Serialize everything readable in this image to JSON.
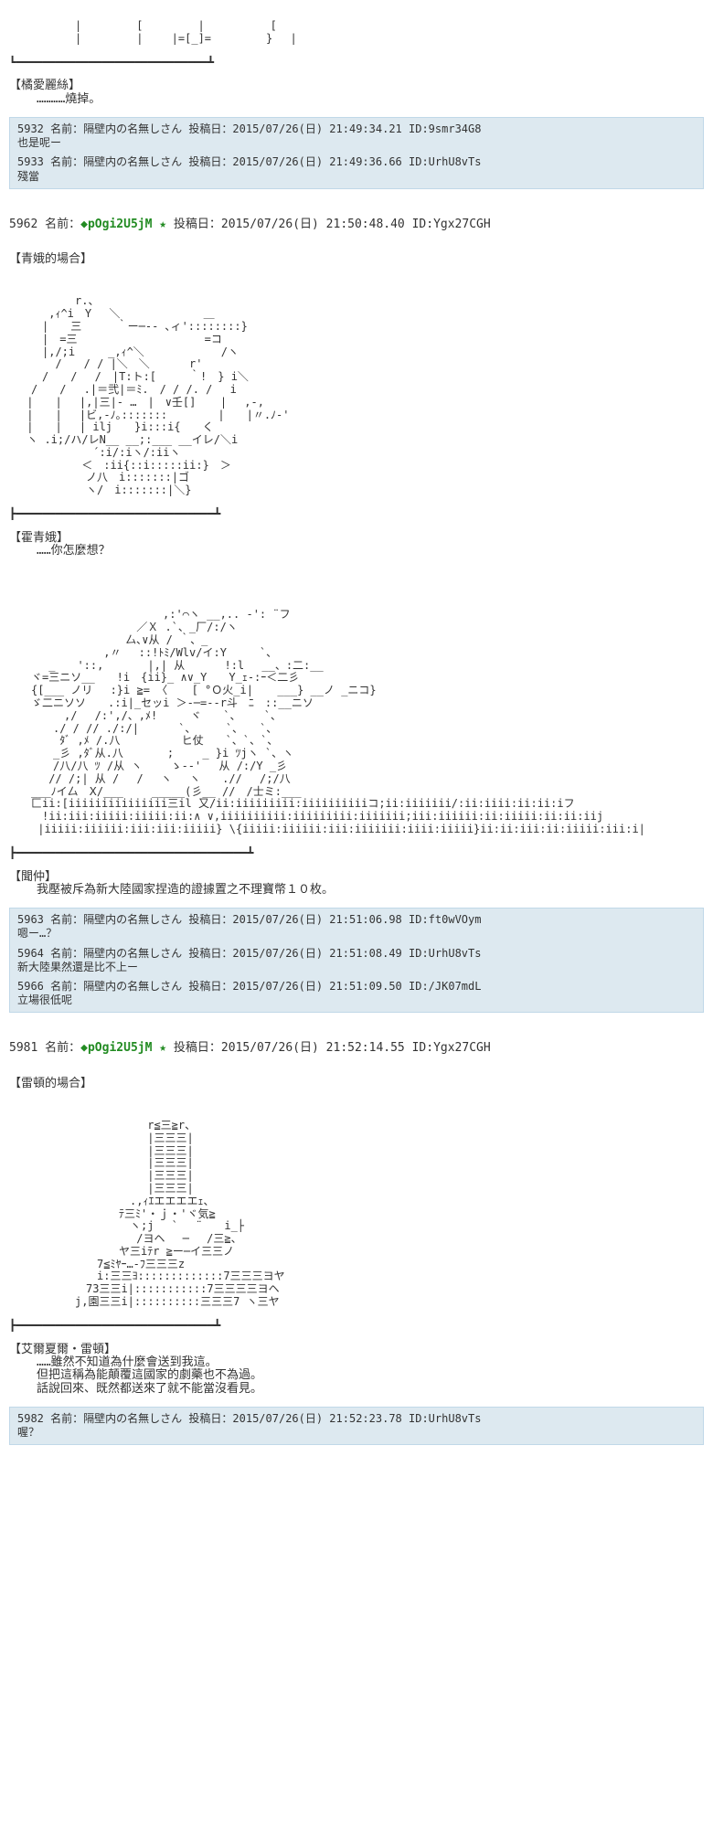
{
  "topAA": "　　　　　　|　　　　　[　　　　　|　　　　　　[\n　　　　　　|　　　　　|　　 |=[_]=　　　　　}　 |",
  "topDivider": "┗━━━━━━━━━━━━━━━━━━━━━━━━━━━━━┻",
  "speaker1": {
    "name": "【橘愛麗絲】",
    "line": "…………燒掉。"
  },
  "replies1": [
    {
      "no": "5932",
      "name": "名前：隔壁内の名無しさん",
      "date": "投稿日：2015/07/26(日) 21:49:34.21 ID:9smr34G8",
      "body": "也是呢ー"
    },
    {
      "no": "5933",
      "name": "名前：隔壁内の名無しさん",
      "date": "投稿日：2015/07/26(日) 21:49:36.66 ID:UrhU8vTs",
      "body": "殘當"
    }
  ],
  "post5962": {
    "no": "5962",
    "name": "名前：",
    "trip": "◆pOgi2U5jM",
    "star": "★",
    "date": "投稿日：2015/07/26(日) 21:50:48.40 ID:Ygx27CGH",
    "title": "【青娥的場合】"
  },
  "aa5962a": "　　　　　　r.、\n　　　 ,ｨ^i　Y　 ＼　　　　　　　 ＿\n　　　|　　三　 　 ｀ー─-- ､ィ'::::::::}\n　　　|　=三　　　　　　　　　　　 =コ\n　　　|,/;i　　　_,ｨ^＼　　　　　　　/ヽ\n　　 　 /　　/ / |＼　＼　　　 r'\n　　　/　　/　 /　|T:ト:[　　　｀!　} i＼\n　　/　　/　 .|＝弐|＝ﾐ.　/ / /. /　 i\n　 |　　|　 |,|三|- …　|　∨壬[] 　 | 　,-,\n　 |　　|　 |ビ,-ﾉ｡:::::::　　　　 |　　|〃.ﾉ-'\n　 |　　|　 | ilj　　}i:::i{　　く\n　 ヽ .i;/ハ/レN__ __;:___ __イレ/＼i\n　　　　　　　 ´:i/:iヽ/:iiヽ\n　　　　　　 ＜　:ii{::i:::::ii:}　＞\n　　　　　　　ノ八　i:::::::|ゴ\n　　　　　　　ヽ/　i:::::::|＼}",
  "divider5962a": "┣━━━━━━━━━━━━━━━━━━━━━━━━━━━━━━┻",
  "speaker2": {
    "name": "【霍青娥】",
    "line": "……你怎麼想？"
  },
  "aa5962b": "　　　　　　　　　　　　　　,:'⌒ヽ __,.. -': ¨フ\n　　　　　　　　　　　 ／Ｘ .`、_厂/:/ヽ\n　　　　　　　　　　 厶､∨从 / ｀、_\n　　　　　　　　 ,〃　 ::!ﾄﾐ/Wlv/イ:Y　　　`、\n　　　 _　　'::,　　　　|,| 从　　　 !:l　 __、:二:__\n　　ヾ=三ニソ__　　!i　{ii}_ ∧∨_Y　　Y_ｪ-:ｰ＜二彡\n　　{[___ ノリ　 :}i ≧= 〈 　 [ °Ｏ火_i| 　 ___} __ノ _ニコ}\n　　ゞ二ニソソ　　.:i|_セッi ＞-─=--r斗　ﾆ　::__ニソ\n　　　　　,/　 /:',/、,ﾒ!　　　ヾ　　`、　　 `、\n　　　　./ / // ./:/|　　　 `、　　  `、　　`、\n　　　　 ﾀﾞ ,ﾒ /.八　　　 　　ヒ仗　　`、`、`、\n　　　　_彡 ,ﾀﾞ从.八　　　　;　　 _ }i ﾂjヽ `、ヽ\n　　　　/八/八 ﾂ /从 ヽ　　 ゝ--'　 从 /:/Y _彡\n　　　 // /;| 从 /　 /　 ヽ　 ヽ　　.//　 /;/八\n　　___ﾉイ厶　Ⅹ/___　　 _____(彡__ //　/士ミ:___\n　　匚ii:[iiiiiiiiiiiiiii三il 又/ii:iiiiiiiii:iiiiiiiiiiコ;ii:iiiiiii/:ii:iiii:ii:ii:iフ\n　　　!ii:iii:iiiii:iiiii:ii:∧ ∨,iiiiiiiiii:iiiiiiiii:iiiiiii;iii:iiiiii:ii:iiiii:ii:ii:iij\n　　 |iiiii:iiiiii:iii:iii:iiiii} \\{iiiii:iiiiii:iii:iiiiiii:iiii:iiiii}ii:ii:iii:ii:iiiii:iii:i|",
  "divider5962b": "┣━━━━━━━━━━━━━━━━━━━━━━━━━━━━━━━━━━━┻",
  "speaker3": {
    "name": "【聞仲】",
    "line": "我壓被斥為新大陸國家捏造的證據置之不理寶幣１０枚。"
  },
  "replies2": [
    {
      "no": "5963",
      "name": "名前：隔壁内の名無しさん",
      "date": "投稿日：2015/07/26(日) 21:51:06.98 ID:ft0wVOym",
      "body": "嗯ー…？"
    },
    {
      "no": "5964",
      "name": "名前：隔壁内の名無しさん",
      "date": "投稿日：2015/07/26(日) 21:51:08.49 ID:UrhU8vTs",
      "body": "新大陸果然還是比不上ー"
    },
    {
      "no": "5966",
      "name": "名前：隔壁内の名無しさん",
      "date": "投稿日：2015/07/26(日) 21:51:09.50 ID:/JK07mdL",
      "body": "立場很低呢"
    }
  ],
  "post5981": {
    "no": "5981",
    "name": "名前：",
    "trip": "◆pOgi2U5jM",
    "star": "★",
    "date": "投稿日：2015/07/26(日) 21:52:14.55 ID:Ygx27CGH",
    "title": "【雷頓的場合】"
  },
  "aa5981": "　　　　　　　　　　　　 r≦三≧r、\n　　　　　　　　　　　　 |三三三|\n　　　　　　　　　　　　 |三三三|\n　　　　　　　　　　　　 |三三三|\n　　　　　　　　　　　　 |三三三|\n　　　　　　　　　　　　 |三三三|\n　　　　　　　　　　　.,ｨｴエエエエｪ、\n　　　　　　　　　　ﾃ三ﾐ'・ｊ・'ヾ気≧\n　　　　　　　　　　　ヽ;j　 `　 ¨　　i_├\n　　　　　　　　　　　 /ヨヘ　 ─ 　/三≧、\n　　　　　　　　　　ヤ三iﾃr ≧ー─イ三三ノ\n　　　　　　　　7≦ﾐﾔｰ…-ﾌ三三三z\n　　　　　　　　i:三三ﾖ:::::::::::::7三三三ヨヤ\n　　　　　　　73三三i|:::::::::::7三三三三ヨヘ\n　　　　　　j,園三三i|::::::::::三三三7 ヽ三ヤ",
  "divider5981": "┣━━━━━━━━━━━━━━━━━━━━━━━━━━━━━━┻",
  "speaker4": {
    "name": "【艾爾夏爾・雷頓】",
    "line1": "……雖然不知道為什麼會送到我這。",
    "line2": "但把這稱為能顛覆這國家的劇藥也不為過。",
    "line3": "話說回來、既然都送來了就不能當沒看見。"
  },
  "replies3": [
    {
      "no": "5982",
      "name": "名前：隔壁内の名無しさん",
      "date": "投稿日：2015/07/26(日) 21:52:23.78 ID:UrhU8vTs",
      "body": "喔？"
    }
  ]
}
